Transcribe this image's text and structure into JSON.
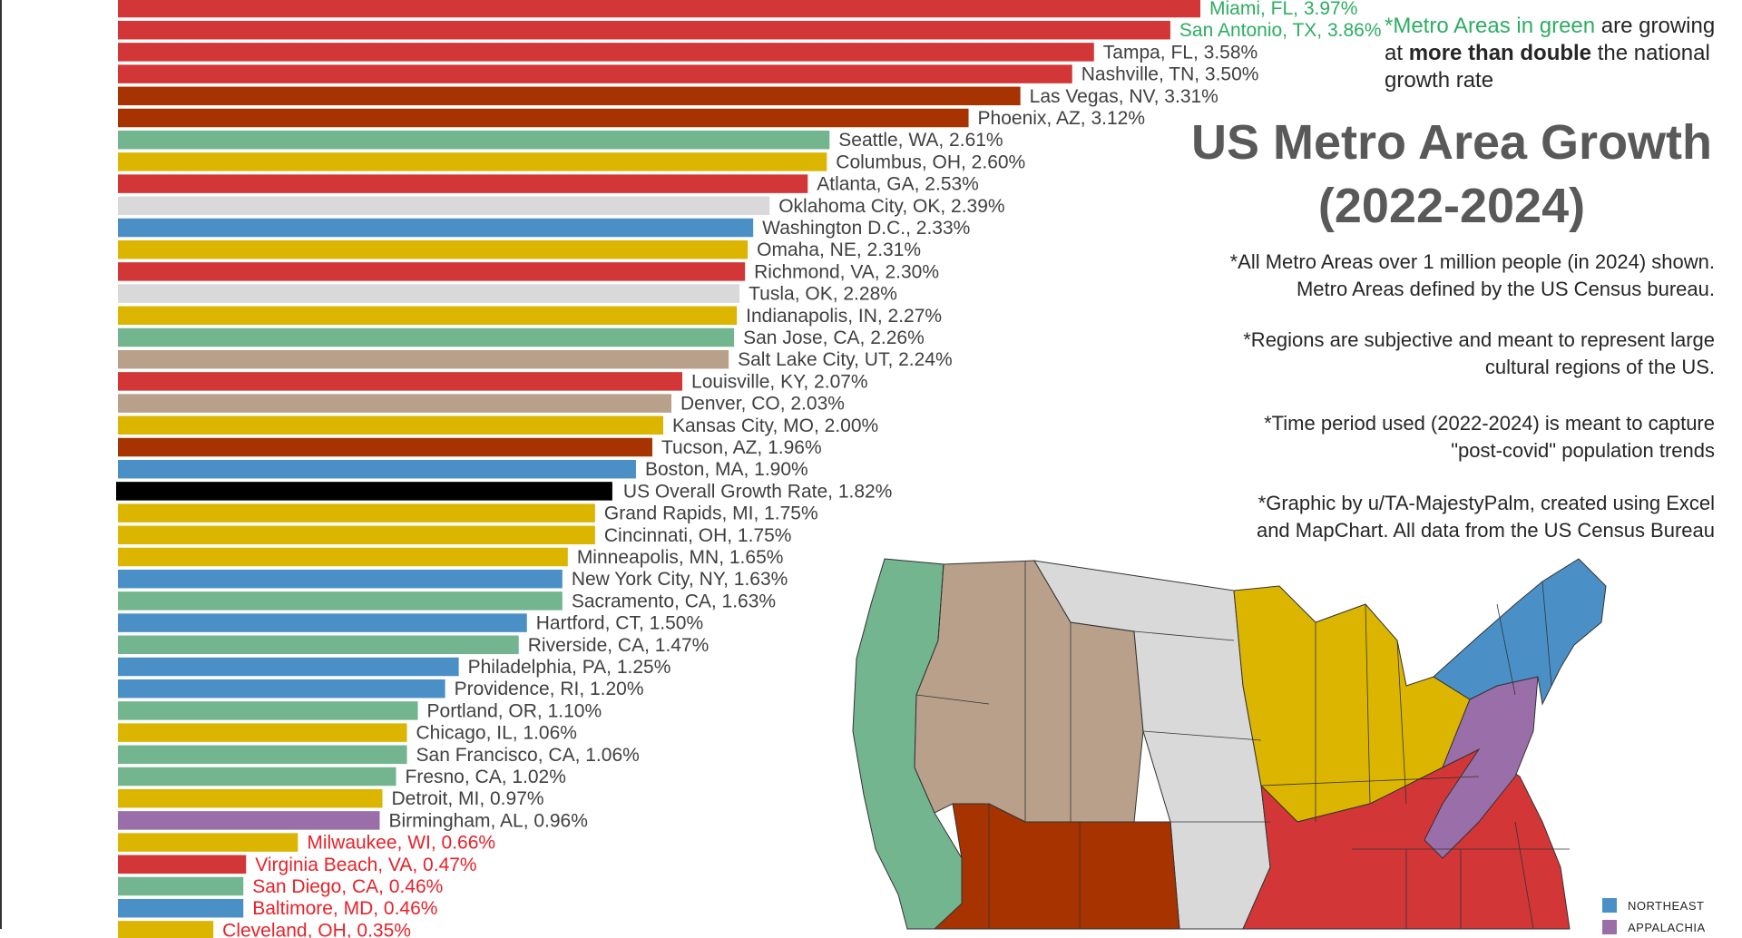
{
  "chart_data": {
    "type": "bar",
    "orientation": "horizontal",
    "title": "",
    "xlabel": "",
    "ylabel": "",
    "xlim": [
      0,
      4.5
    ],
    "grid": false,
    "label_separator": ", ",
    "label_suffix": "%",
    "regions": {
      "Northeast": "#4a90c6",
      "Appalachia": "#9a6ea8",
      "South": "#d33636",
      "Midwest": "#dbb500",
      "Southwest": "#a63300",
      "Mountain West": "#b8a08a",
      "Plains": "#d9d9d9",
      "West Coast": "#72b58e",
      "US Overall": "#000000"
    },
    "bars": [
      {
        "label": "Miami, FL",
        "value": "3.97",
        "region": "South",
        "label_color": "#2cae62"
      },
      {
        "label": "San Antonio, TX",
        "value": "3.86",
        "region": "South",
        "label_color": "#2cae62"
      },
      {
        "label": "Tampa, FL",
        "value": "3.58",
        "region": "South",
        "label_color": "#404040"
      },
      {
        "label": "Nashville, TN",
        "value": "3.50",
        "region": "South",
        "label_color": "#404040"
      },
      {
        "label": "Las Vegas, NV",
        "value": "3.31",
        "region": "Southwest",
        "label_color": "#404040"
      },
      {
        "label": "Phoenix, AZ",
        "value": "3.12",
        "region": "Southwest",
        "label_color": "#404040"
      },
      {
        "label": "Seattle, WA",
        "value": "2.61",
        "region": "West Coast",
        "label_color": "#404040"
      },
      {
        "label": "Columbus, OH",
        "value": "2.60",
        "region": "Midwest",
        "label_color": "#404040"
      },
      {
        "label": "Atlanta, GA",
        "value": "2.53",
        "region": "South",
        "label_color": "#404040"
      },
      {
        "label": "Oklahoma City, OK",
        "value": "2.39",
        "region": "Plains",
        "label_color": "#404040"
      },
      {
        "label": "Washington D.C.",
        "value": "2.33",
        "region": "Northeast",
        "label_color": "#404040"
      },
      {
        "label": "Omaha, NE",
        "value": "2.31",
        "region": "Midwest",
        "label_color": "#404040"
      },
      {
        "label": "Richmond, VA",
        "value": "2.30",
        "region": "South",
        "label_color": "#404040"
      },
      {
        "label": "Tusla, OK",
        "value": "2.28",
        "region": "Plains",
        "label_color": "#404040"
      },
      {
        "label": "Indianapolis, IN",
        "value": "2.27",
        "region": "Midwest",
        "label_color": "#404040"
      },
      {
        "label": "San Jose, CA",
        "value": "2.26",
        "region": "West Coast",
        "label_color": "#404040"
      },
      {
        "label": "Salt Lake City, UT",
        "value": " 2.24",
        "region": "Mountain West",
        "label_color": "#404040"
      },
      {
        "label": "Louisville, KY",
        "value": "2.07",
        "region": "South",
        "label_color": "#404040"
      },
      {
        "label": "Denver, CO",
        "value": "2.03",
        "region": "Mountain West",
        "label_color": "#404040"
      },
      {
        "label": "Kansas City, MO",
        "value": "2.00",
        "region": "Midwest",
        "label_color": "#404040"
      },
      {
        "label": "Tucson, AZ",
        "value": "1.96",
        "region": "Southwest",
        "label_color": "#404040"
      },
      {
        "label": "Boston, MA",
        "value": "1.90",
        "region": "Northeast",
        "label_color": "#404040"
      },
      {
        "label": "US Overall Growth Rate",
        "value": "1.82",
        "region": "US Overall",
        "label_color": "#404040"
      },
      {
        "label": "Grand Rapids, MI",
        "value": "1.75",
        "region": "Midwest",
        "label_color": "#404040"
      },
      {
        "label": "Cincinnati, OH",
        "value": "1.75",
        "region": "Midwest",
        "label_color": "#404040"
      },
      {
        "label": "Minneapolis, MN",
        "value": "1.65",
        "region": "Midwest",
        "label_color": "#404040"
      },
      {
        "label": "New York City, NY",
        "value": "1.63",
        "region": "Northeast",
        "label_color": "#404040"
      },
      {
        "label": "Sacramento, CA",
        "value": "1.63",
        "region": "West Coast",
        "label_color": "#404040"
      },
      {
        "label": "Hartford, CT",
        "value": "1.50",
        "region": "Northeast",
        "label_color": "#404040"
      },
      {
        "label": "Riverside, CA",
        "value": "1.47",
        "region": "West Coast",
        "label_color": "#404040"
      },
      {
        "label": "Philadelphia, PA",
        "value": "1.25",
        "region": "Northeast",
        "label_color": "#404040"
      },
      {
        "label": "Providence, RI",
        "value": "1.20",
        "region": "Northeast",
        "label_color": "#404040"
      },
      {
        "label": "Portland, OR",
        "value": "1.10",
        "region": "West Coast",
        "label_color": "#404040"
      },
      {
        "label": "Chicago, IL",
        "value": "1.06",
        "region": "Midwest",
        "label_color": "#404040"
      },
      {
        "label": "San Francisco, CA",
        "value": "1.06",
        "region": "West Coast",
        "label_color": "#404040"
      },
      {
        "label": "Fresno, CA",
        "value": "1.02",
        "region": "West Coast",
        "label_color": "#404040"
      },
      {
        "label": "Detroit, MI",
        "value": "0.97",
        "region": "Midwest",
        "label_color": "#404040"
      },
      {
        "label": "Birmingham, AL",
        "value": "0.96",
        "region": "Appalachia",
        "label_color": "#404040"
      },
      {
        "label": "Milwaukee, WI",
        "value": "0.66",
        "region": "Midwest",
        "label_color": "#e8222a"
      },
      {
        "label": "Virginia Beach, VA",
        "value": "0.47",
        "region": "South",
        "label_color": "#e8222a"
      },
      {
        "label": "San Diego, CA",
        "value": "0.46",
        "region": "West Coast",
        "label_color": "#e8222a"
      },
      {
        "label": "Baltimore, MD",
        "value": "0.46",
        "region": "Northeast",
        "label_color": "#e8222a"
      },
      {
        "label": "Cleveland, OH",
        "value": "0.35",
        "region": "Midwest",
        "label_color": "#e8222a"
      }
    ]
  },
  "notes": {
    "green_note": {
      "prefix": "*Metro Areas in green",
      "mid": " are growing at ",
      "bold": "more than double",
      "suffix": " the national growth rate"
    },
    "title_line1": "US Metro Area Growth",
    "title_line2": "(2022-2024)",
    "note1_line1": "*All Metro Areas over 1 million people (in 2024) shown.",
    "note1_line2": "Metro Areas defined by the US Census bureau.",
    "note2_line1": "*Regions are subjective and meant to represent large",
    "note2_line2": "cultural regions of the US.",
    "note3_line1": "*Time period used (2022-2024) is meant to capture",
    "note3_line2": "\"post-covid\" population trends",
    "note4_line1": "*Graphic by u/TA-MajestyPalm, created using Excel",
    "note4_line2": "and MapChart. All data from the US Census Bureau"
  },
  "map": {
    "legend": [
      {
        "label": "NORTHEAST",
        "color": "#4a90c6"
      },
      {
        "label": "APPALACHIA",
        "color": "#9a6ea8"
      }
    ],
    "colors": {
      "west_coast": "#72b58e",
      "mountain_west": "#b8a08a",
      "plains": "#d9d9d9",
      "southwest": "#a63300",
      "midwest": "#dbb500",
      "south": "#d33636",
      "appalachia": "#9a6ea8",
      "northeast": "#4a90c6",
      "border": "#333333"
    }
  }
}
